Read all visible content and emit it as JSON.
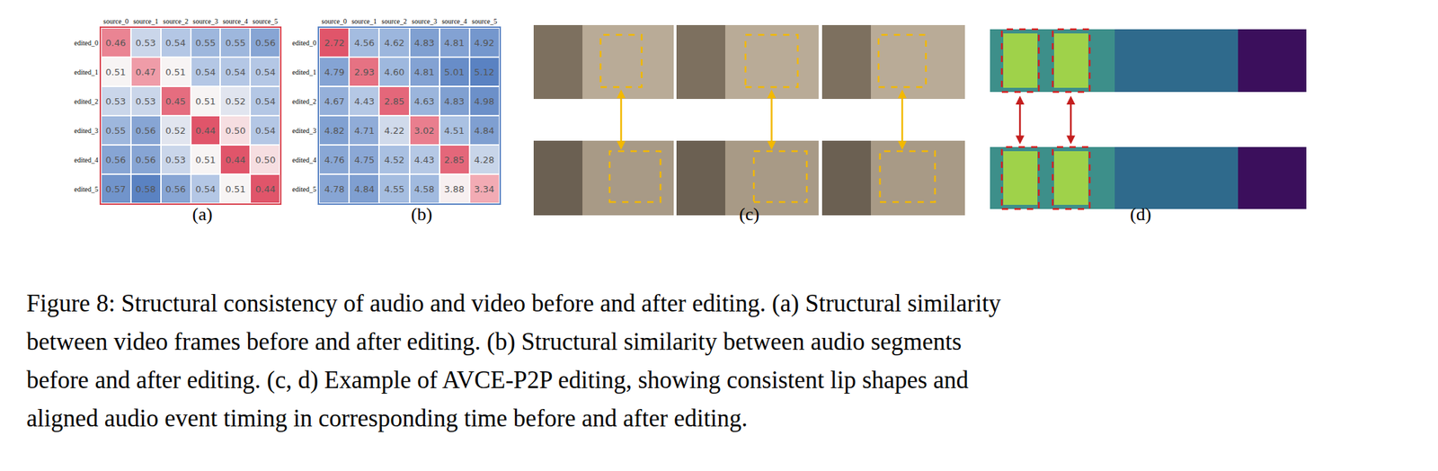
{
  "chart_data": [
    {
      "type": "heatmap",
      "label": "(a)",
      "data_labels": true,
      "x": [
        "source_0",
        "source_1",
        "source_2",
        "source_3",
        "source_4",
        "source_5"
      ],
      "y": [
        "edited_0",
        "edited_1",
        "edited_2",
        "edited_3",
        "edited_4",
        "edited_5"
      ],
      "z": [
        [
          0.46,
          0.53,
          0.54,
          0.55,
          0.55,
          0.56
        ],
        [
          0.51,
          0.47,
          0.51,
          0.54,
          0.54,
          0.54
        ],
        [
          0.53,
          0.53,
          0.45,
          0.51,
          0.52,
          0.54
        ],
        [
          0.55,
          0.56,
          0.52,
          0.44,
          0.5,
          0.54
        ],
        [
          0.56,
          0.56,
          0.53,
          0.51,
          0.44,
          0.5
        ],
        [
          0.57,
          0.58,
          0.56,
          0.54,
          0.51,
          0.44
        ]
      ],
      "color": "#d9434f"
    },
    {
      "type": "heatmap",
      "label": "(b)",
      "data_labels": true,
      "x": [
        "source_0",
        "source_1",
        "source_2",
        "source_3",
        "source_4",
        "source_5"
      ],
      "y": [
        "edited_0",
        "edited_1",
        "edited_2",
        "edited_3",
        "edited_4",
        "edited_5"
      ],
      "z": [
        [
          2.72,
          4.56,
          4.62,
          4.83,
          4.81,
          4.92
        ],
        [
          4.79,
          2.93,
          4.6,
          4.81,
          5.01,
          5.12
        ],
        [
          4.67,
          4.43,
          2.85,
          4.63,
          4.83,
          4.98
        ],
        [
          4.82,
          4.71,
          4.22,
          3.02,
          4.51,
          4.84
        ],
        [
          4.76,
          4.75,
          4.52,
          4.43,
          2.85,
          4.28
        ],
        [
          4.78,
          4.84,
          4.55,
          4.58,
          3.88,
          3.34
        ]
      ],
      "color": "#5b84c4"
    }
  ],
  "panel_labels": [
    "(c)",
    "(d)"
  ],
  "caption": [
    "Figure 8: Structural consistency of audio and video before and after editing. (a) Structural similarity",
    "between video frames before and after editing. (b) Structural similarity between audio segments",
    "before and after editing. (c, d) Example of AVCE-P2P editing, showing consistent lip shapes and",
    "aligned audio event timing in corresponding time before and after editing."
  ]
}
